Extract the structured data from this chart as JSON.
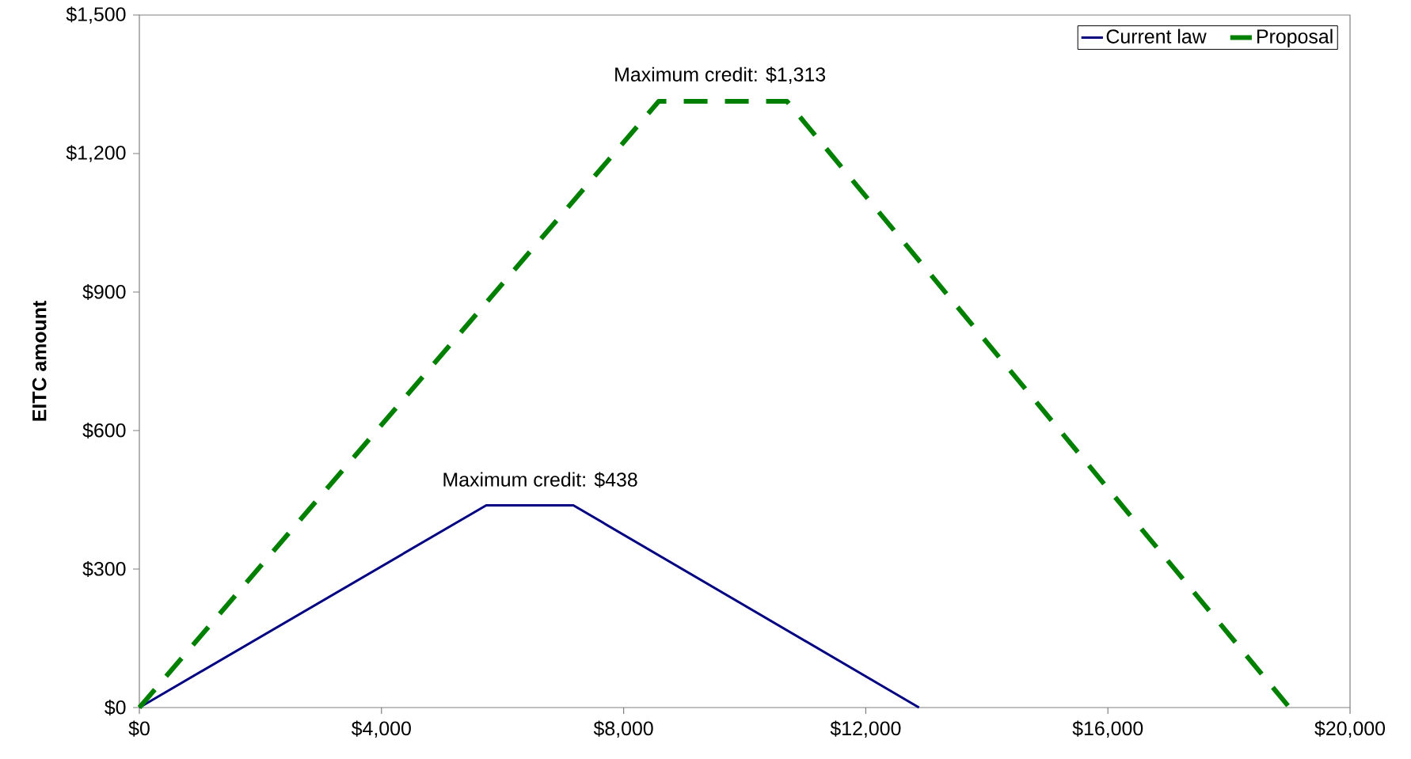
{
  "chart_data": {
    "type": "line",
    "ylabel": "EITC amount",
    "xlim": [
      0,
      20000
    ],
    "ylim": [
      0,
      1500
    ],
    "xticks": [
      {
        "value": 0,
        "label": "$0"
      },
      {
        "value": 4000,
        "label": "$4,000"
      },
      {
        "value": 8000,
        "label": "$8,000"
      },
      {
        "value": 12000,
        "label": "$12,000"
      },
      {
        "value": 16000,
        "label": "$16,000"
      },
      {
        "value": 20000,
        "label": "$20,000"
      }
    ],
    "yticks": [
      {
        "value": 0,
        "label": "$0"
      },
      {
        "value": 300,
        "label": "$300"
      },
      {
        "value": 600,
        "label": "$600"
      },
      {
        "value": 900,
        "label": "$900"
      },
      {
        "value": 1200,
        "label": "$1,200"
      },
      {
        "value": 1500,
        "label": "$1,500"
      }
    ],
    "series": [
      {
        "name": "Current law",
        "color": "#000080",
        "line_style": "solid",
        "x": [
          0,
          5730,
          7170,
          12880
        ],
        "values": [
          0,
          438,
          438,
          0
        ]
      },
      {
        "name": "Proposal",
        "color": "#008000",
        "line_style": "dashed",
        "x": [
          0,
          8580,
          10700,
          19000
        ],
        "values": [
          0,
          1313,
          1313,
          0
        ]
      }
    ],
    "annotations": [
      {
        "text": "Maximum credit: $1,313",
        "x": 9590,
        "y": 1313
      },
      {
        "text": "Maximum credit: $438",
        "x": 6620,
        "y": 438
      }
    ],
    "legend": "top right",
    "grid": false,
    "marker": "none"
  }
}
